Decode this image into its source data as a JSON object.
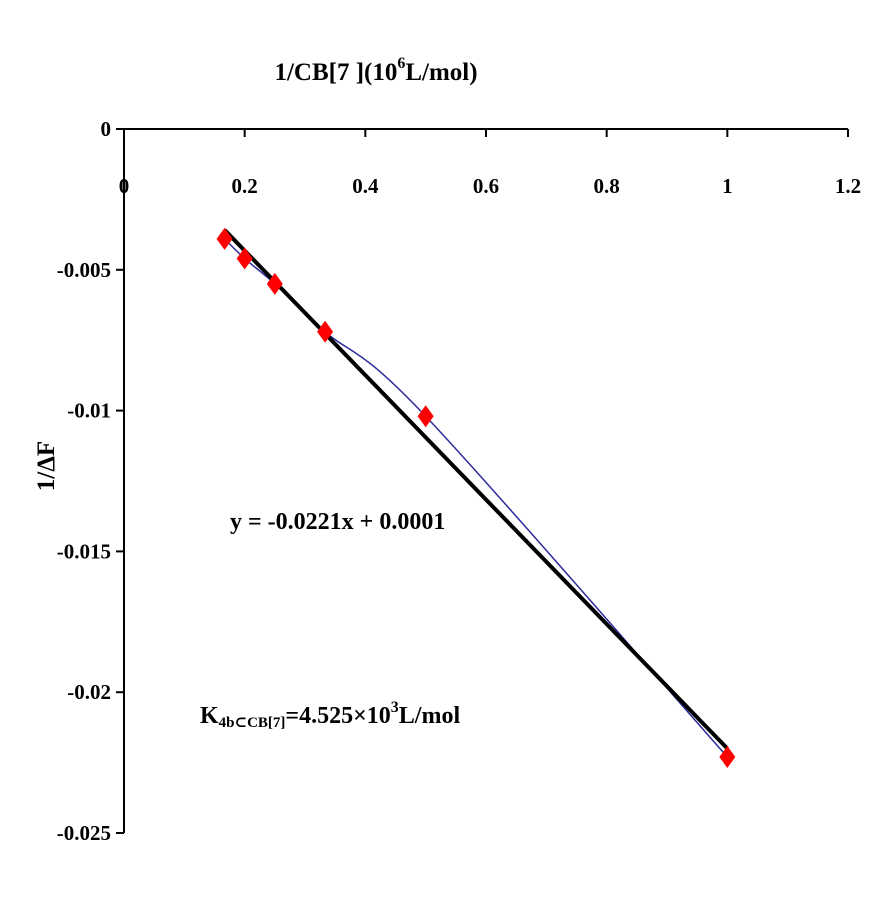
{
  "chart_data": {
    "type": "scatter",
    "title_main": "1/CB[7 ](10",
    "title_sup": "6",
    "title_tail": "L/mol)",
    "ylabel": "1/ΔF",
    "xlim": [
      0,
      1.2
    ],
    "ylim": [
      -0.025,
      0
    ],
    "x_ticks": [
      "0",
      "0.2",
      "0.4",
      "0.6",
      "0.8",
      "1",
      "1.2"
    ],
    "y_ticks": [
      "0",
      "-0.005",
      "-0.01",
      "-0.015",
      "-0.02",
      "-0.025"
    ],
    "x_tick_values": [
      0,
      0.2,
      0.4,
      0.6,
      0.8,
      1.0,
      1.2
    ],
    "y_tick_values": [
      0,
      -0.005,
      -0.01,
      -0.015,
      -0.02,
      -0.025
    ],
    "grid": false,
    "legend": "none",
    "series": [
      {
        "x": [
          0.1667,
          0.2,
          0.25,
          0.3333,
          0.5,
          1.0
        ],
        "y": [
          -0.0039,
          -0.0046,
          -0.0055,
          -0.0072,
          -0.0102,
          -0.0223
        ],
        "marker": "diamond",
        "color": "#ff0000",
        "connector_color": "#2b2b9c"
      }
    ],
    "trendline": {
      "slope": -0.0221,
      "intercept": 0.0001,
      "x_range": [
        0.1667,
        1.0
      ],
      "color": "#000000",
      "equation": "y = -0.0221x + 0.0001"
    },
    "annotation_k": {
      "prefix": "K",
      "subscript": "4b⊂CB[7]",
      "text": "=4.525×10",
      "sup": "3",
      "tail": "L/mol"
    }
  }
}
